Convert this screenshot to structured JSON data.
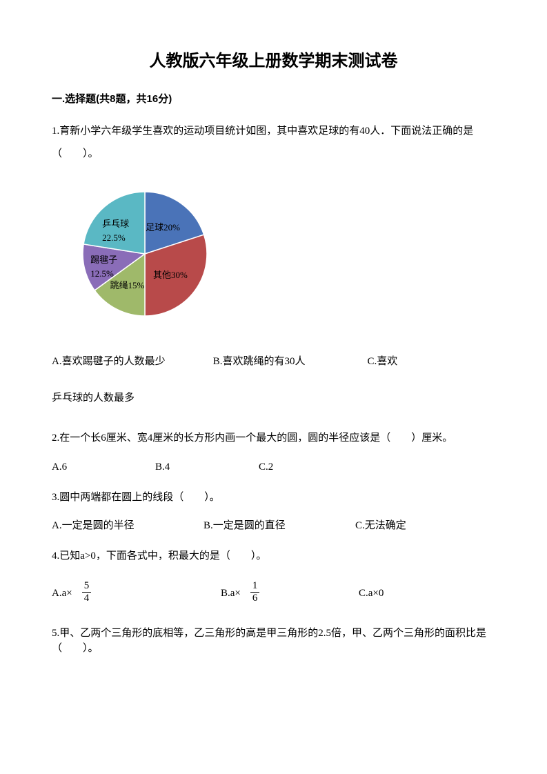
{
  "title": "人教版六年级上册数学期末测试卷",
  "section": "一.选择题(共8题，共16分)",
  "q1": {
    "text": "1.育新小学六年级学生喜欢的运动项目统计如图，其中喜欢足球的有40人．下面说法正确的是（　　）。",
    "optA": "A.喜欢踢毽子的人数最少",
    "optB": "B.喜欢跳绳的有30人",
    "optC": "C.喜欢",
    "optC_line2": "乒乓球的人数最多"
  },
  "chart": {
    "type": "pie",
    "slices": [
      {
        "label": "足球20%",
        "value": 20,
        "color": "#4a73b8"
      },
      {
        "label": "其他30%",
        "value": 30,
        "color": "#b84a4a"
      },
      {
        "label": "跳绳15%",
        "value": 15,
        "color": "#9fb96a"
      },
      {
        "label": "踢毽子",
        "label2": "12.5%",
        "value": 12.5,
        "color": "#8a6db8"
      },
      {
        "label": "乒乓球",
        "label2": "22.5%",
        "value": 22.5,
        "color": "#5ab8c4"
      }
    ],
    "border_color": "#ffffff",
    "label_fontsize": 13,
    "label_color": "#000000",
    "background": "#ffffff"
  },
  "q2": {
    "text": "2.在一个长6厘米、宽4厘米的长方形内画一个最大的圆，圆的半径应该是（　　）厘米。",
    "optA": "A.6",
    "optB": "B.4",
    "optC": "C.2"
  },
  "q3": {
    "text": "3.圆中两端都在圆上的线段（　　）。",
    "optA": "A.一定是圆的半径",
    "optB": "B.一定是圆的直径",
    "optC": "C.无法确定"
  },
  "q4": {
    "text": "4.已知a>0，下面各式中，积最大的是（　　）。",
    "optA_pre": "A.a×",
    "fracA_num": "5",
    "fracA_den": "4",
    "optB_pre": "B.a×",
    "fracB_num": "1",
    "fracB_den": "6",
    "optC": "C.a×0"
  },
  "q5": {
    "text": "5.甲、乙两个三角形的底相等，乙三角形的高是甲三角形的2.5倍，甲、乙两个三角形的面积比是（　　）。"
  }
}
